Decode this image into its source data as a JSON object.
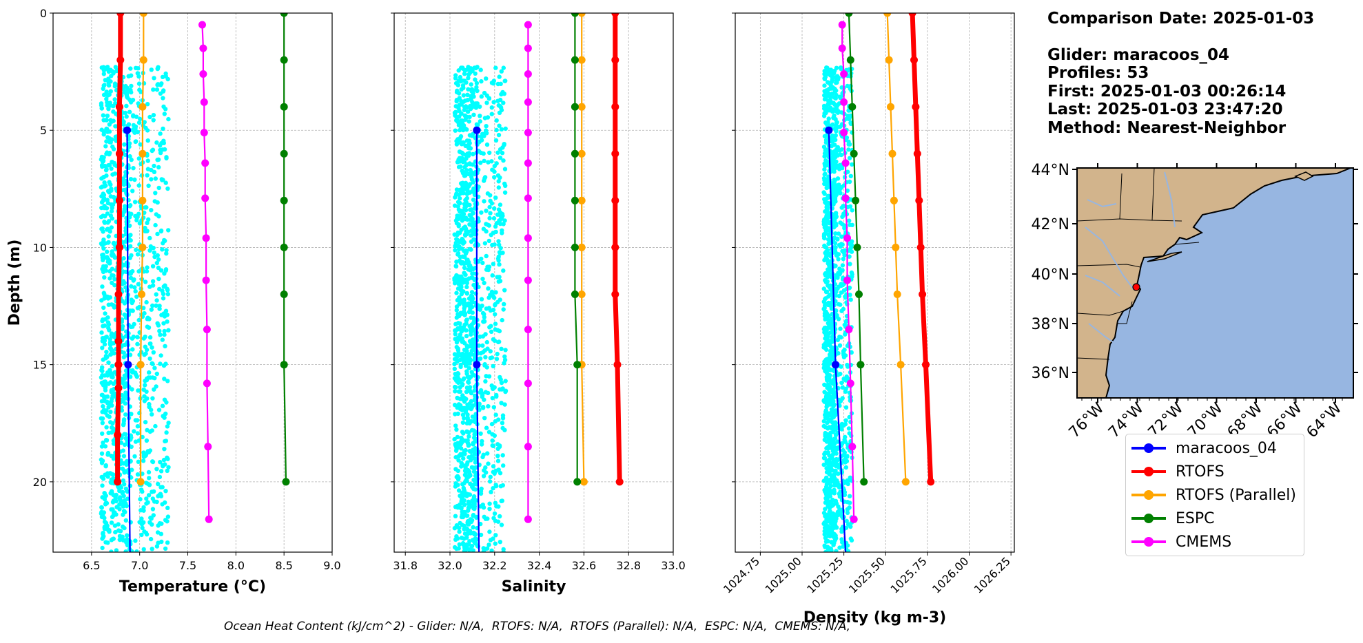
{
  "info": {
    "comparison_date": "Comparison Date: 2025-01-03",
    "glider": "Glider: maracoos_04",
    "profiles": "Profiles: 53",
    "first": "First: 2025-01-03 00:26:14",
    "last": "Last: 2025-01-03 23:47:20",
    "method": "Method: Nearest-Neighbor"
  },
  "footer": "Ocean Heat Content (kJ/cm^2) - Glider: N/A,  RTOFS: N/A,  RTOFS (Parallel): N/A,  ESPC: N/A,  CMEMS: N/A,",
  "legend": [
    {
      "label": "maracoos_04",
      "color": "#0000ff"
    },
    {
      "label": "RTOFS",
      "color": "#ff0000"
    },
    {
      "label": "RTOFS (Parallel)",
      "color": "#ffa500"
    },
    {
      "label": "ESPC",
      "color": "#008000"
    },
    {
      "label": "CMEMS",
      "color": "#ff00ff"
    }
  ],
  "map": {
    "lat_ticks": [
      "36°N",
      "38°N",
      "40°N",
      "42°N",
      "44°N"
    ],
    "lon_ticks": [
      "76°W",
      "74°W",
      "72°W",
      "70°W",
      "68°W",
      "66°W",
      "64°W"
    ],
    "glider_location": {
      "lon": -74.0,
      "lat": 39.5
    },
    "land_color": "#d2b48c",
    "ocean_color": "#97b6e1"
  },
  "chart_data": [
    {
      "type": "line",
      "xlabel": "Temperature (°C)",
      "ylabel": "Depth (m)",
      "xlim": [
        6.1,
        9.0
      ],
      "ylim": [
        23,
        0
      ],
      "xticks": [
        "6.5",
        "7.0",
        "7.5",
        "8.0",
        "8.5",
        "9.0"
      ],
      "yticks": [
        "0",
        "5",
        "10",
        "15",
        "20"
      ],
      "grid": true,
      "scatter": {
        "name": "maracoos_04",
        "color": "#00ffff",
        "x_range": [
          6.6,
          7.3
        ],
        "depth_range": [
          2.3,
          23
        ]
      },
      "series": [
        {
          "name": "maracoos_04",
          "color": "#0000ff",
          "x": [
            6.87,
            6.88,
            6.9
          ],
          "depth": [
            5,
            15,
            23
          ]
        },
        {
          "name": "RTOFS",
          "color": "#ff0000",
          "x": [
            6.8,
            6.8,
            6.79,
            6.79,
            6.79,
            6.79,
            6.78,
            6.78,
            6.78,
            6.78,
            6.77,
            6.77
          ],
          "depth": [
            0,
            2,
            4,
            6,
            8,
            10,
            12,
            14,
            15,
            16,
            18,
            20
          ]
        },
        {
          "name": "RTOFS (Parallel)",
          "color": "#ffa500",
          "x": [
            7.04,
            7.04,
            7.03,
            7.03,
            7.03,
            7.03,
            7.02,
            7.01,
            7.01
          ],
          "depth": [
            0,
            2,
            4,
            6,
            8,
            10,
            12,
            15,
            20
          ]
        },
        {
          "name": "ESPC",
          "color": "#008000",
          "x": [
            8.5,
            8.5,
            8.5,
            8.5,
            8.5,
            8.5,
            8.5,
            8.5,
            8.52
          ],
          "depth": [
            0,
            2,
            4,
            6,
            8,
            10,
            12,
            15,
            20
          ]
        },
        {
          "name": "CMEMS",
          "color": "#ff00ff",
          "x": [
            7.65,
            7.66,
            7.66,
            7.67,
            7.67,
            7.68,
            7.68,
            7.69,
            7.69,
            7.7,
            7.7,
            7.71,
            7.72
          ],
          "depth": [
            0.5,
            1.5,
            2.6,
            3.8,
            5.1,
            6.4,
            7.9,
            9.6,
            11.4,
            13.5,
            15.8,
            18.5,
            21.6
          ]
        }
      ]
    },
    {
      "type": "line",
      "xlabel": "Salinity",
      "xlim": [
        31.75,
        33.0
      ],
      "ylim": [
        23,
        0
      ],
      "xticks": [
        "31.8",
        "32.0",
        "32.2",
        "32.4",
        "32.6",
        "32.8",
        "33.0"
      ],
      "grid": true,
      "scatter": {
        "name": "maracoos_04",
        "color": "#00ffff",
        "x_range": [
          32.02,
          32.25
        ],
        "depth_range": [
          2.3,
          23
        ]
      },
      "series": [
        {
          "name": "maracoos_04",
          "color": "#0000ff",
          "x": [
            32.12,
            32.12,
            32.13
          ],
          "depth": [
            5,
            15,
            23
          ]
        },
        {
          "name": "RTOFS",
          "color": "#ff0000",
          "x": [
            32.74,
            32.74,
            32.74,
            32.74,
            32.74,
            32.74,
            32.74,
            32.75,
            32.76
          ],
          "depth": [
            0,
            2,
            4,
            6,
            8,
            10,
            12,
            15,
            20
          ]
        },
        {
          "name": "RTOFS (Parallel)",
          "color": "#ffa500",
          "x": [
            32.59,
            32.59,
            32.59,
            32.59,
            32.59,
            32.59,
            32.59,
            32.59,
            32.6
          ],
          "depth": [
            0,
            2,
            4,
            6,
            8,
            10,
            12,
            15,
            20
          ]
        },
        {
          "name": "ESPC",
          "color": "#008000",
          "x": [
            32.56,
            32.56,
            32.56,
            32.56,
            32.56,
            32.56,
            32.56,
            32.57,
            32.57
          ],
          "depth": [
            0,
            2,
            4,
            6,
            8,
            10,
            12,
            15,
            20
          ]
        },
        {
          "name": "CMEMS",
          "color": "#ff00ff",
          "x": [
            32.35,
            32.35,
            32.35,
            32.35,
            32.35,
            32.35,
            32.35,
            32.35,
            32.35,
            32.35,
            32.35,
            32.35,
            32.35
          ],
          "depth": [
            0.5,
            1.5,
            2.6,
            3.8,
            5.1,
            6.4,
            7.9,
            9.6,
            11.4,
            13.5,
            15.8,
            18.5,
            21.6
          ]
        }
      ]
    },
    {
      "type": "line",
      "xlabel": "Density (kg m-3)",
      "xlim": [
        1024.6,
        1026.27
      ],
      "ylim": [
        23,
        0
      ],
      "xticks": [
        "1024.75",
        "1025.00",
        "1025.25",
        "1025.50",
        "1025.75",
        "1026.00",
        "1026.25"
      ],
      "grid": true,
      "scatter": {
        "name": "maracoos_04",
        "color": "#00ffff",
        "x_range": [
          1025.13,
          1025.3
        ],
        "depth_range": [
          2.3,
          23
        ]
      },
      "series": [
        {
          "name": "maracoos_04",
          "color": "#0000ff",
          "x": [
            1025.16,
            1025.2,
            1025.26
          ],
          "depth": [
            5,
            15,
            23
          ]
        },
        {
          "name": "RTOFS",
          "color": "#ff0000",
          "x": [
            1025.66,
            1025.67,
            1025.68,
            1025.69,
            1025.7,
            1025.71,
            1025.72,
            1025.74,
            1025.77
          ],
          "depth": [
            0,
            2,
            4,
            6,
            8,
            10,
            12,
            15,
            20
          ]
        },
        {
          "name": "RTOFS (Parallel)",
          "color": "#ffa500",
          "x": [
            1025.51,
            1025.52,
            1025.53,
            1025.54,
            1025.55,
            1025.56,
            1025.57,
            1025.59,
            1025.62
          ],
          "depth": [
            0,
            2,
            4,
            6,
            8,
            10,
            12,
            15,
            20
          ]
        },
        {
          "name": "ESPC",
          "color": "#008000",
          "x": [
            1025.28,
            1025.29,
            1025.3,
            1025.31,
            1025.32,
            1025.33,
            1025.34,
            1025.35,
            1025.37
          ],
          "depth": [
            0,
            2,
            4,
            6,
            8,
            10,
            12,
            15,
            20
          ]
        },
        {
          "name": "CMEMS",
          "color": "#ff00ff",
          "x": [
            1025.24,
            1025.24,
            1025.25,
            1025.25,
            1025.25,
            1025.26,
            1025.26,
            1025.27,
            1025.27,
            1025.28,
            1025.29,
            1025.3,
            1025.31
          ],
          "depth": [
            0.5,
            1.5,
            2.6,
            3.8,
            5.1,
            6.4,
            7.9,
            9.6,
            11.4,
            13.5,
            15.8,
            18.5,
            21.6
          ]
        }
      ]
    }
  ]
}
